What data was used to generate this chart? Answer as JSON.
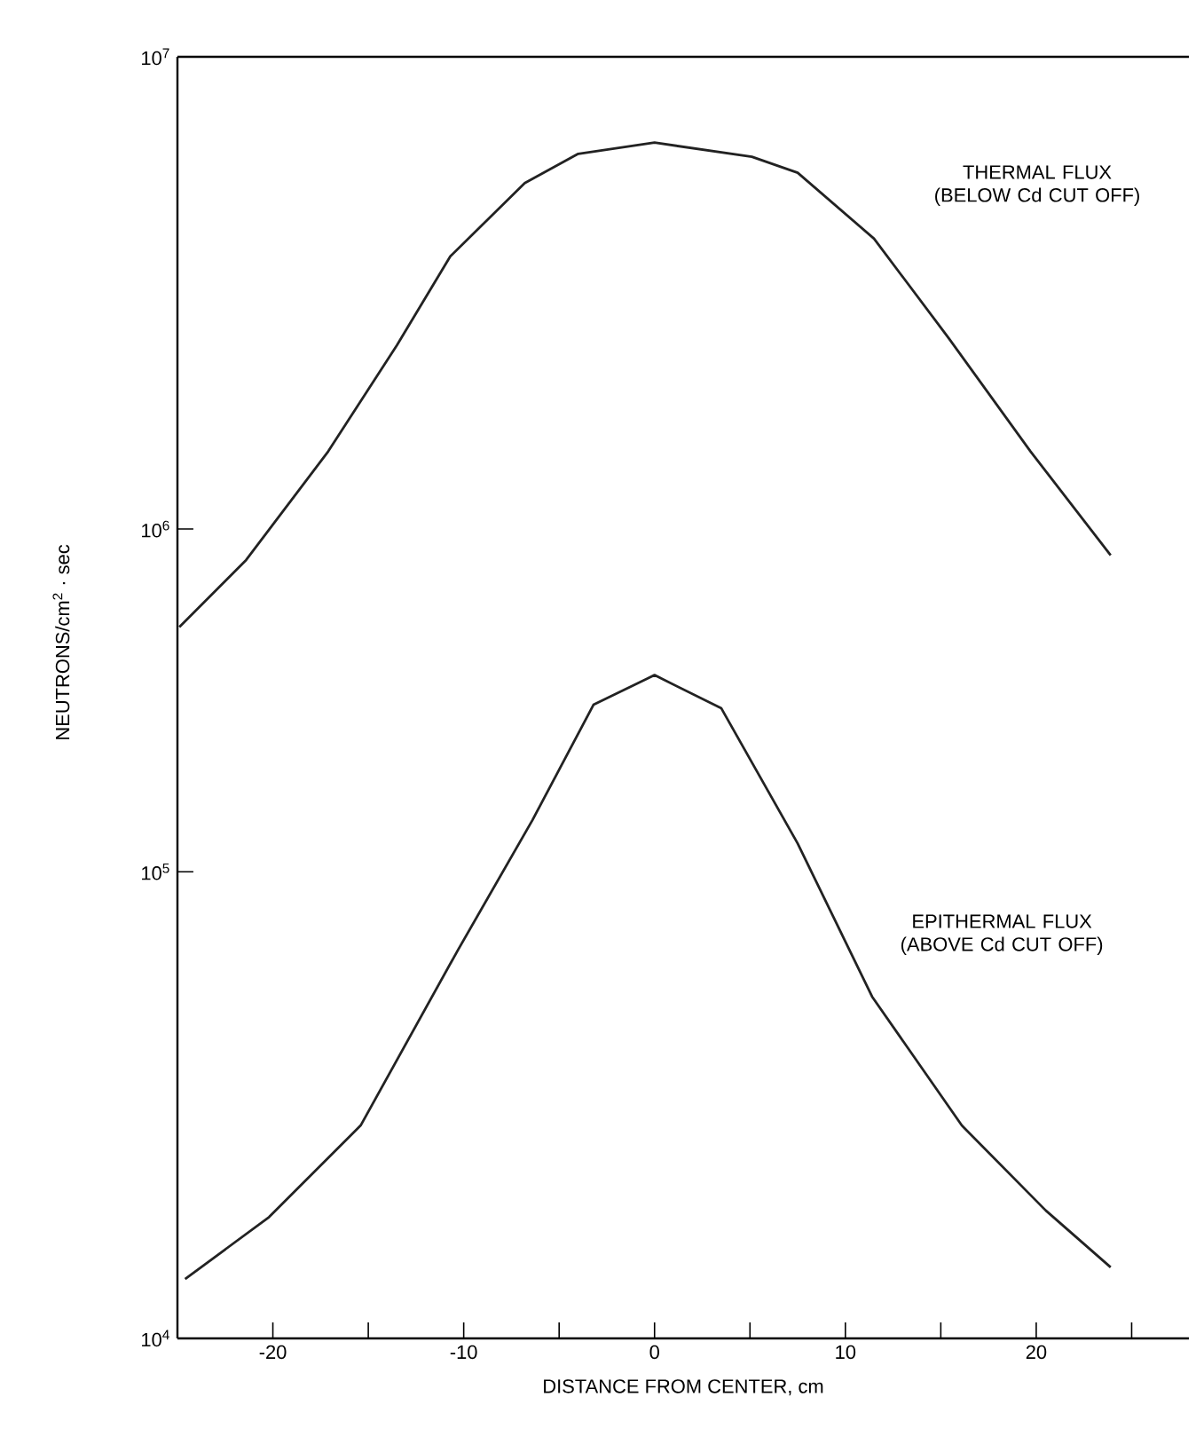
{
  "chart_data": [
    {
      "type": "line",
      "ylabel": "NEUTRONS/cm$^{2}$ · sec",
      "log": "y",
      "tick_labels": "y",
      "xlim": [
        -25,
        28
      ],
      "ylim": [
        575000,
        10000000
      ],
      "yticks": [
        {
          "value": 1000000,
          "label": "10$^{6}$"
        },
        {
          "value": 10000000,
          "label": "10$^{7}$"
        }
      ],
      "annotations": [
        "THERMAL FLUX (BELOW Cd CUT OFF)"
      ],
      "series": [
        {
          "color": "#222222",
          "x": [
            -24.9,
            -21.4,
            -17.1,
            -13.5,
            -10.7,
            -6.8,
            -4.0,
            0,
            5.1,
            7.5,
            11.5,
            15.4,
            19.7,
            23.9
          ],
          "values": [
            620000,
            860000,
            1460000,
            2450000,
            3780000,
            5400000,
            6230000,
            6580000,
            6140000,
            5680000,
            4120000,
            2540000,
            1460000,
            880000
          ]
        }
      ]
    },
    {
      "type": "line",
      "xlabel": "DISTANCE FROM CENTER, cm",
      "log": "y",
      "xlim": [
        -25,
        28
      ],
      "ylim": [
        10000,
        310000
      ],
      "xticks": [
        -20,
        -10,
        0,
        10,
        20,
        {
          "value": -15,
          "label": null
        },
        {
          "value": -5,
          "label": null
        },
        {
          "value": 5,
          "label": null
        },
        {
          "value": 15,
          "label": null
        },
        {
          "value": 25,
          "label": null
        }
      ],
      "yticks": [
        {
          "value": 10000,
          "label": "10$^{4}$"
        },
        {
          "value": 100000,
          "label": "10$^{5}$"
        }
      ],
      "annotations": [
        "EPITHERMAL FLUX (ABOVE Cd CUT OFF)"
      ],
      "series": [
        {
          "color": "#222222",
          "x": [
            -24.6,
            -20.2,
            -15.4,
            -10.3,
            -6.4,
            -3.2,
            0,
            3.5,
            7.5,
            11.4,
            16.1,
            20.5,
            23.9
          ],
          "values": [
            13400,
            18200,
            28600,
            68000,
            129000,
            228000,
            264000,
            224000,
            115000,
            54000,
            28600,
            18800,
            14200
          ]
        }
      ]
    }
  ]
}
